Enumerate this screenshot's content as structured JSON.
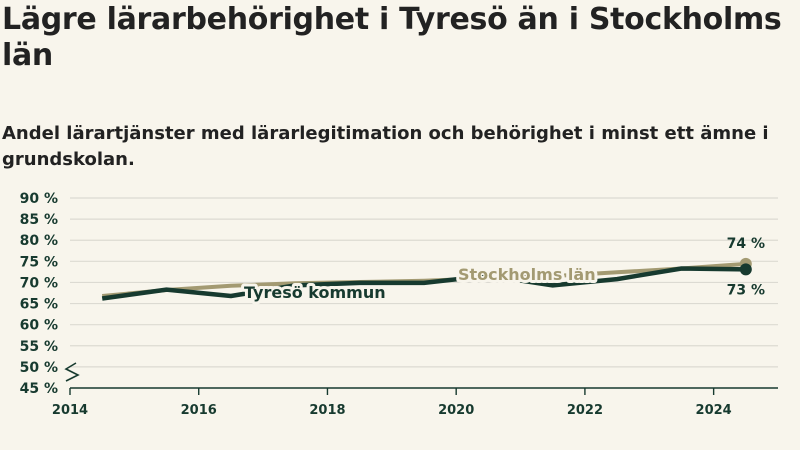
{
  "title": "Lägre lärarbehörighet i Tyresö än i Stockholms län",
  "subtitle": "Andel lärartjänster med lärarlegitimation och behörighet i minst ett ämne i grundskolan.",
  "chart_data": {
    "type": "line",
    "title": "Lägre lärarbehörighet i Tyresö än i Stockholms län",
    "subtitle": "Andel lärartjänster med lärarlegitimation och behörighet i minst ett ämne i grundskolan.",
    "xlabel": "",
    "ylabel": "",
    "x": [
      2014.5,
      2015.5,
      2016.5,
      2017.5,
      2018.5,
      2019.5,
      2020.5,
      2021.5,
      2022.5,
      2023.5,
      2024.5
    ],
    "xlim": [
      2014,
      2025
    ],
    "xticks": [
      2014,
      2016,
      2018,
      2020,
      2022,
      2024
    ],
    "xtick_labels": [
      "2014",
      "2016",
      "2018",
      "2020",
      "2022",
      "2024"
    ],
    "ylim": [
      45,
      90
    ],
    "yticks": [
      45,
      50,
      55,
      60,
      65,
      70,
      75,
      80,
      85,
      90
    ],
    "ytick_labels": [
      "45 %",
      "50 %",
      "55 %",
      "60 %",
      "65 %",
      "70 %",
      "75 %",
      "80 %",
      "85 %",
      "90 %"
    ],
    "axis_break": true,
    "grid": true,
    "series": [
      {
        "name": "Stockholms län",
        "color": "#a39a72",
        "values": [
          66.8,
          68.2,
          69.2,
          69.8,
          70.1,
          70.4,
          71.0,
          71.5,
          72.4,
          73.3,
          74.4
        ],
        "end_label": "74 %"
      },
      {
        "name": "Tyresö kommun",
        "color": "#173a2f",
        "values": [
          66.2,
          68.3,
          66.8,
          69.3,
          69.9,
          69.9,
          71.6,
          69.3,
          70.8,
          73.3,
          73.1
        ],
        "end_label": "73 %"
      }
    ]
  },
  "colors": {
    "background": "#f8f5ec",
    "grid": "#dcdad2",
    "axis": "#173a2f"
  }
}
